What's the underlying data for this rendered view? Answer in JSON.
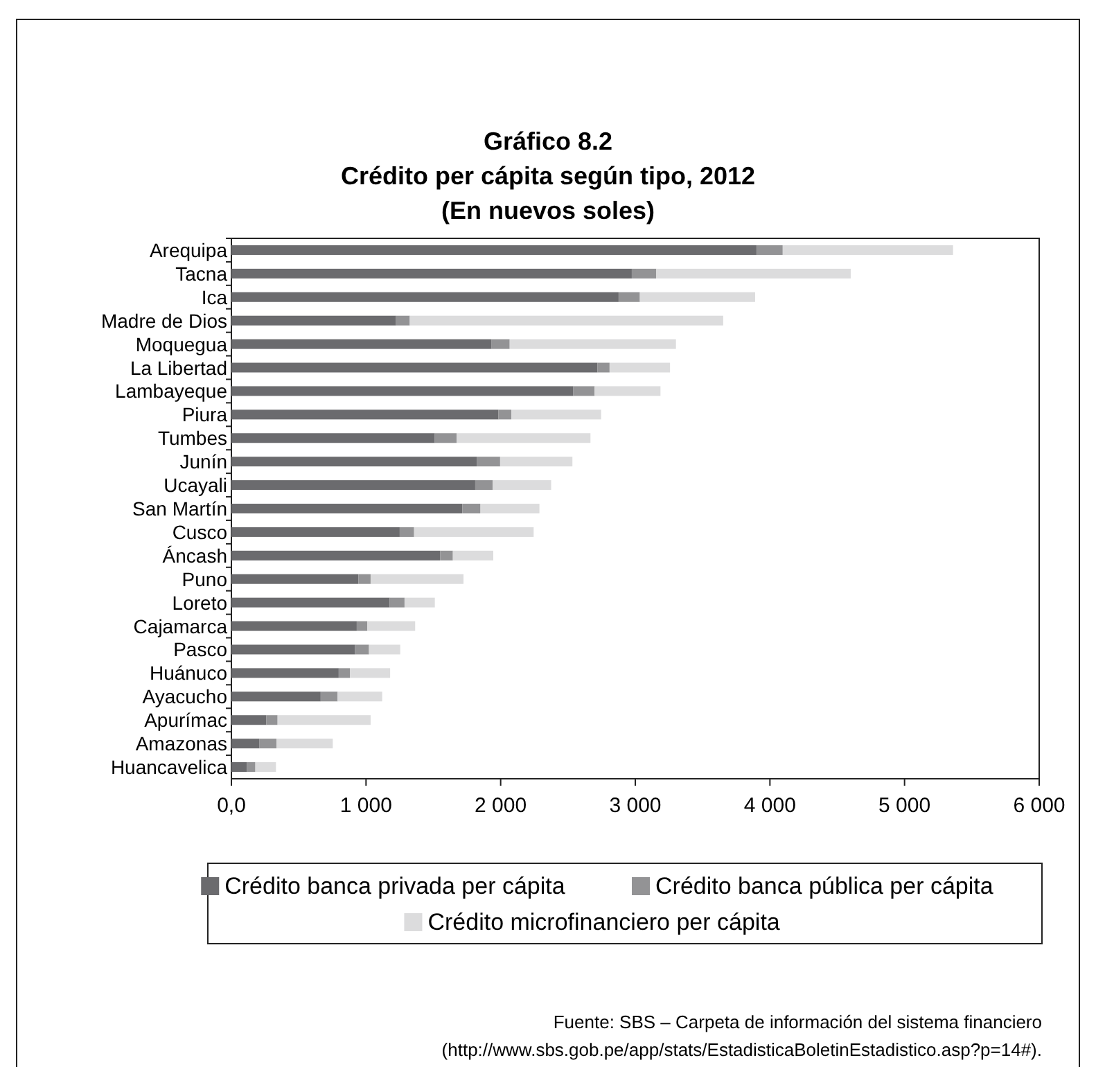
{
  "chart_data": {
    "type": "bar",
    "orientation": "horizontal",
    "stacked": true,
    "title": "Gráfico 8.2",
    "subtitle": "Crédito per cápita según tipo, 2012\n(En nuevos soles)",
    "categories": [
      "Arequipa",
      "Tacna",
      "Ica",
      "Madre de Dios",
      "Moquegua",
      "La Libertad",
      "Lambayeque",
      "Piura",
      "Tumbes",
      "Junín",
      "Ucayali",
      "San Martín",
      "Cusco",
      "Áncash",
      "Puno",
      "Loreto",
      "Cajamarca",
      "Pasco",
      "Huánuco",
      "Ayacucho",
      "Apurímac",
      "Amazonas",
      "Huancavelica"
    ],
    "series": [
      {
        "name": "Crédito banca privada per cápita",
        "color": "#6b6b6e",
        "values": [
          3900,
          2974,
          2876,
          1223,
          1933,
          2718,
          2540,
          1984,
          1511,
          1822,
          1811,
          1716,
          1250,
          1550,
          943,
          1176,
          931,
          919,
          797,
          663,
          260,
          209,
          114
        ]
      },
      {
        "name": "Crédito banca pública per cápita",
        "color": "#939395",
        "values": [
          195,
          182,
          158,
          102,
          134,
          91,
          158,
          95,
          162,
          174,
          130,
          134,
          107,
          95,
          91,
          110,
          79,
          103,
          83,
          126,
          83,
          126,
          64
        ]
      },
      {
        "name": "Crédito microfinanciero per cápita",
        "color": "#dcdcdd",
        "values": [
          1265,
          1444,
          856,
          2328,
          1235,
          449,
          489,
          667,
          994,
          537,
          434,
          438,
          888,
          300,
          690,
          225,
          355,
          232,
          299,
          331,
          691,
          418,
          153
        ]
      }
    ],
    "xlim": [
      0,
      6000
    ],
    "xticks": [
      {
        "value": 0,
        "label": "0,0"
      },
      {
        "value": 1000,
        "label": "1 000"
      },
      {
        "value": 2000,
        "label": "2 000"
      },
      {
        "value": 3000,
        "label": "3 000"
      },
      {
        "value": 4000,
        "label": "4 000"
      },
      {
        "value": 5000,
        "label": "5 000"
      },
      {
        "value": 6000,
        "label": "6 000"
      }
    ],
    "grid": false,
    "legend": "bottom",
    "annotations": [
      "Fuente: SBS – Carpeta de información del sistema financiero\n(http://www.sbs.gob.pe/app/stats/EstadisticaBoletinEstadistico.asp?p=14#)."
    ]
  }
}
